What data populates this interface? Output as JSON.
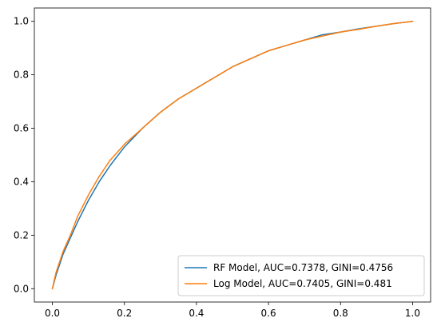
{
  "chart_data": {
    "type": "line",
    "title": "",
    "xlabel": "",
    "ylabel": "",
    "xlim": [
      -0.05,
      1.05
    ],
    "ylim": [
      -0.05,
      1.05
    ],
    "xticks": [
      0.0,
      0.2,
      0.4,
      0.6,
      0.8,
      1.0
    ],
    "yticks": [
      0.0,
      0.2,
      0.4,
      0.6,
      0.8,
      1.0
    ],
    "xtick_labels": [
      "0.0",
      "0.2",
      "0.4",
      "0.6",
      "0.8",
      "1.0"
    ],
    "ytick_labels": [
      "0.0",
      "0.2",
      "0.4",
      "0.6",
      "0.8",
      "1.0"
    ],
    "grid": false,
    "legend": {
      "placement": "lower-right"
    },
    "series": [
      {
        "name": "RF Model, AUC=0.7378, GINI=0.4756",
        "color": "#1f77b4",
        "x": [
          0.0,
          0.01,
          0.02,
          0.03,
          0.05,
          0.07,
          0.1,
          0.13,
          0.16,
          0.2,
          0.25,
          0.3,
          0.35,
          0.4,
          0.45,
          0.5,
          0.55,
          0.6,
          0.65,
          0.7,
          0.75,
          0.8,
          0.85,
          0.9,
          0.95,
          1.0
        ],
        "y": [
          0.0,
          0.05,
          0.09,
          0.13,
          0.19,
          0.25,
          0.33,
          0.4,
          0.46,
          0.53,
          0.6,
          0.66,
          0.71,
          0.75,
          0.79,
          0.83,
          0.86,
          0.89,
          0.91,
          0.93,
          0.95,
          0.96,
          0.972,
          0.982,
          0.992,
          1.0
        ]
      },
      {
        "name": "Log Model, AUC=0.7405, GINI=0.481",
        "color": "#ff7f0e",
        "x": [
          0.0,
          0.01,
          0.02,
          0.03,
          0.05,
          0.07,
          0.1,
          0.13,
          0.16,
          0.2,
          0.25,
          0.3,
          0.35,
          0.4,
          0.45,
          0.5,
          0.55,
          0.6,
          0.65,
          0.7,
          0.75,
          0.8,
          0.85,
          0.9,
          0.95,
          1.0
        ],
        "y": [
          0.0,
          0.06,
          0.1,
          0.14,
          0.2,
          0.27,
          0.35,
          0.42,
          0.48,
          0.54,
          0.6,
          0.66,
          0.71,
          0.75,
          0.79,
          0.83,
          0.86,
          0.89,
          0.91,
          0.93,
          0.945,
          0.96,
          0.97,
          0.982,
          0.992,
          1.0
        ]
      }
    ]
  }
}
